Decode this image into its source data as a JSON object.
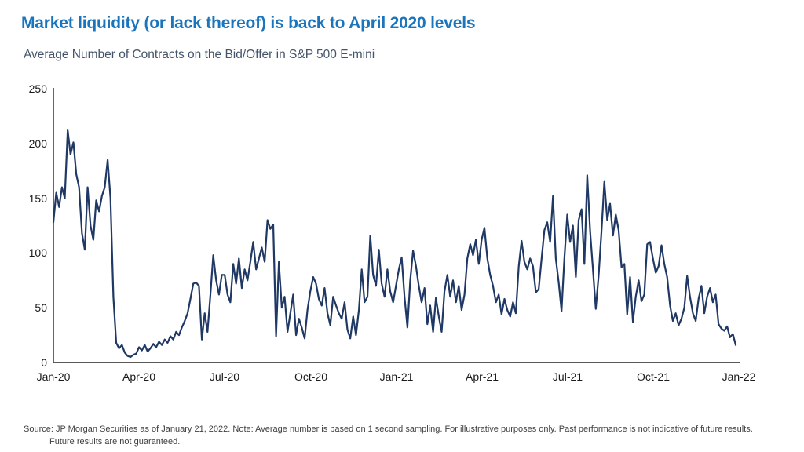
{
  "header": {
    "title": "Market liquidity (or lack thereof) is back to April 2020 levels",
    "subtitle": "Average Number of Contracts on the Bid/Offer in S&P 500 E-mini"
  },
  "footer": {
    "line1": "Source: JP Morgan Securities as of January 21, 2022. Note: Average number is based on 1 second sampling. For illustrative purposes only. Past performance is not indicative of future results.",
    "line2": "Future results are not guaranteed."
  },
  "colors": {
    "title_accent": "#1B75BC",
    "line": "#1F3864",
    "axis": "#595959",
    "subtitle_text": "#44546A",
    "footer_text": "#404040"
  },
  "chart_data": {
    "type": "line",
    "title": "Average Number of Contracts on the Bid/Offer in S&P 500 E-mini",
    "xlabel": "",
    "ylabel": "",
    "ylim": [
      0,
      250
    ],
    "grid": false,
    "legend": "none",
    "xtick_labels": [
      "Jan-20",
      "Apr-20",
      "Jul-20",
      "Oct-20",
      "Jan-21",
      "Apr-21",
      "Jul-21",
      "Oct-21",
      "Jan-22"
    ],
    "ytick_labels": [
      "250",
      "200",
      "150",
      "100",
      "50",
      "0"
    ],
    "series": [
      {
        "name": "Average contracts on bid/offer, S&P 500 E-mini (1 second sampling)",
        "values": [
          128,
          155,
          142,
          160,
          150,
          212,
          190,
          201,
          172,
          160,
          118,
          103,
          160,
          125,
          112,
          148,
          138,
          152,
          160,
          185,
          150,
          60,
          18,
          13,
          16,
          9,
          6,
          5,
          7,
          8,
          14,
          11,
          16,
          10,
          13,
          17,
          14,
          19,
          16,
          21,
          18,
          24,
          21,
          28,
          25,
          32,
          38,
          45,
          58,
          72,
          73,
          70,
          21,
          45,
          28,
          62,
          98,
          75,
          62,
          80,
          80,
          62,
          55,
          90,
          72,
          95,
          68,
          85,
          75,
          92,
          110,
          85,
          95,
          105,
          92,
          130,
          122,
          126,
          24,
          92,
          50,
          60,
          28,
          45,
          62,
          25,
          40,
          32,
          22,
          48,
          65,
          78,
          72,
          58,
          52,
          68,
          45,
          34,
          60,
          52,
          45,
          40,
          55,
          30,
          22,
          42,
          25,
          48,
          85,
          55,
          60,
          116,
          80,
          70,
          103,
          72,
          60,
          85,
          65,
          55,
          70,
          85,
          96,
          60,
          32,
          75,
          102,
          88,
          70,
          55,
          68,
          35,
          52,
          28,
          59,
          42,
          28,
          65,
          80,
          60,
          75,
          55,
          70,
          48,
          62,
          95,
          108,
          98,
          112,
          90,
          112,
          123,
          95,
          80,
          70,
          55,
          62,
          44,
          58,
          48,
          42,
          55,
          45,
          88,
          111,
          92,
          85,
          95,
          88,
          64,
          67,
          95,
          121,
          128,
          110,
          152,
          95,
          73,
          47,
          95,
          135,
          110,
          125,
          78,
          130,
          140,
          90,
          171,
          120,
          85,
          49,
          80,
          120,
          165,
          130,
          145,
          116,
          135,
          121,
          87,
          90,
          44,
          78,
          37,
          60,
          75,
          56,
          62,
          108,
          110,
          95,
          82,
          88,
          107,
          90,
          78,
          52,
          38,
          45,
          34,
          40,
          50,
          79,
          60,
          45,
          38,
          58,
          70,
          45,
          60,
          68,
          55,
          62,
          35,
          31,
          29,
          33,
          23,
          26,
          16
        ]
      }
    ]
  }
}
